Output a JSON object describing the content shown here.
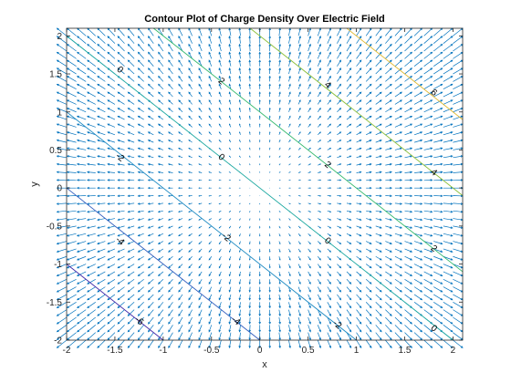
{
  "chart_data": {
    "type": "contour",
    "title": "Contour Plot of Charge Density Over Electric Field",
    "xlabel": "x",
    "ylabel": "y",
    "xlim": [
      -2,
      2.1
    ],
    "ylim": [
      -2,
      2.1
    ],
    "x_ticks": [
      -2,
      -1.5,
      -1,
      -0.5,
      0,
      0.5,
      1,
      1.5,
      2
    ],
    "y_ticks": [
      -2,
      -1.5,
      -1,
      -0.5,
      0,
      0.5,
      1,
      1.5,
      2
    ],
    "x_tick_labels": [
      "-2",
      "-1.5",
      "-1",
      "-0.5",
      "0",
      "0.5",
      "1",
      "1.5",
      "2"
    ],
    "y_tick_labels": [
      "-2",
      "-1.5",
      "-1",
      "-0.5",
      "0",
      "0.5",
      "1",
      "1.5",
      "2"
    ],
    "grid": false,
    "box": true,
    "contour_function": "2*(x+y)",
    "contour_levels": [
      {
        "level": -6,
        "label": "-6",
        "color": "#3e26a8"
      },
      {
        "level": -4,
        "label": "-4",
        "color": "#2f5bbd"
      },
      {
        "level": -2,
        "label": "-2",
        "color": "#1f8bc2"
      },
      {
        "level": 0,
        "label": "0",
        "color": "#1ea9a1"
      },
      {
        "level": 2,
        "label": "2",
        "color": "#33b86c"
      },
      {
        "level": 4,
        "label": "4",
        "color": "#8cbf3a"
      },
      {
        "level": 6,
        "label": "6",
        "color": "#e0b92e"
      }
    ],
    "contour_label_positions": [
      {
        "x": -1.45,
        "y": 1.55,
        "label": "0"
      },
      {
        "x": -0.4,
        "y": 1.4,
        "label": "2"
      },
      {
        "x": 0.7,
        "y": 1.35,
        "label": "4"
      },
      {
        "x": 1.8,
        "y": 1.25,
        "label": "6"
      },
      {
        "x": -1.45,
        "y": 0.4,
        "label": "-2"
      },
      {
        "x": -0.4,
        "y": 0.4,
        "label": "0"
      },
      {
        "x": 0.7,
        "y": 0.3,
        "label": "2"
      },
      {
        "x": 1.8,
        "y": 0.2,
        "label": "4"
      },
      {
        "x": -1.45,
        "y": -0.7,
        "label": "-4"
      },
      {
        "x": -0.35,
        "y": -0.65,
        "label": "-2"
      },
      {
        "x": 0.7,
        "y": -0.7,
        "label": "0"
      },
      {
        "x": 1.8,
        "y": -0.8,
        "label": "2"
      },
      {
        "x": -1.25,
        "y": -1.75,
        "label": "-6"
      },
      {
        "x": -0.25,
        "y": -1.75,
        "label": "-4"
      },
      {
        "x": 0.8,
        "y": -1.8,
        "label": "-2"
      },
      {
        "x": 1.8,
        "y": -1.85,
        "label": "0"
      }
    ],
    "quiver": {
      "field": "E = (x, y)",
      "x_range": [
        -2,
        2
      ],
      "y_range": [
        -2,
        2
      ],
      "step": 0.1,
      "color": "#0072bd"
    }
  }
}
